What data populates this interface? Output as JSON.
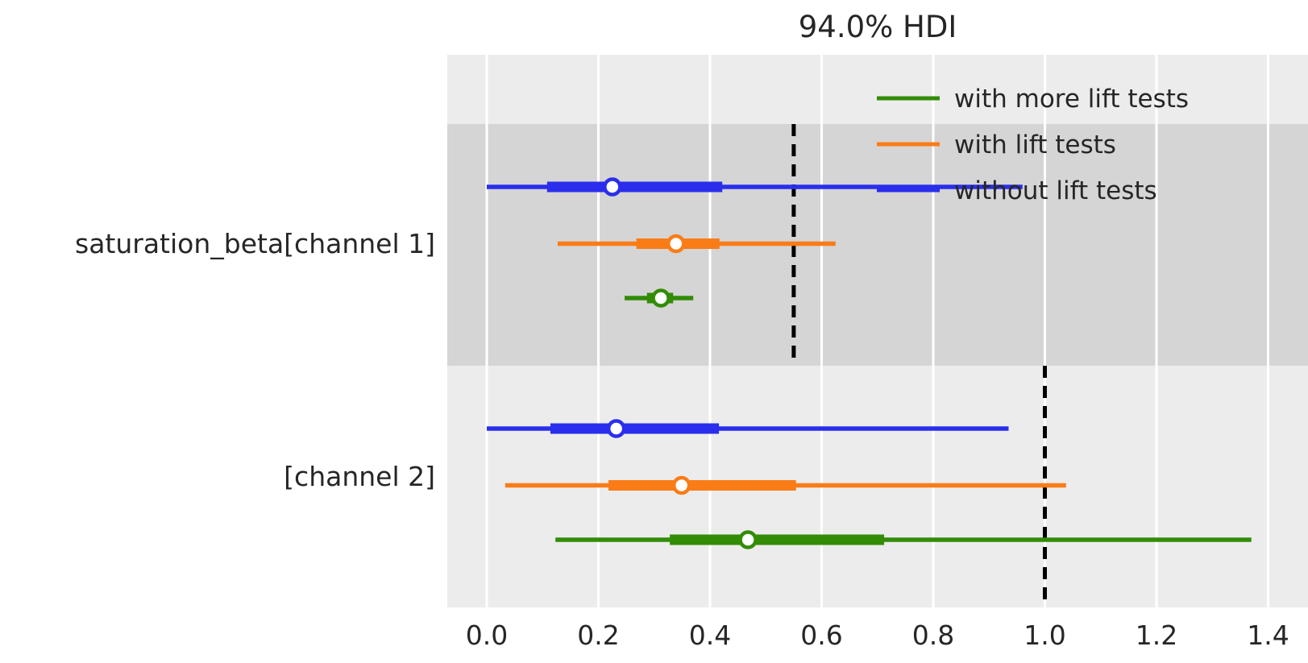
{
  "title": "94.0% HDI",
  "colors": {
    "blue": "#2a2eec",
    "orange": "#fa7c17",
    "green": "#328c06",
    "plot_bg": "#ececec",
    "band": "#d5d5d5",
    "grid": "#ffffff",
    "text": "#262626",
    "ref_line": "#000000",
    "marker_face": "#ffffff"
  },
  "legend": {
    "items": [
      {
        "label": "with more lift tests",
        "color": "#328c06"
      },
      {
        "label": "with lift tests",
        "color": "#fa7c17"
      },
      {
        "label": "without lift tests",
        "color": "#2a2eec"
      }
    ]
  },
  "chart_data": {
    "type": "forest",
    "title": "94.0% HDI",
    "hdi_label": "94.0% HDI",
    "xlabel": "",
    "x_ticks": [
      0.0,
      0.2,
      0.4,
      0.6,
      0.8,
      1.0,
      1.2,
      1.4
    ],
    "xlim": [
      -0.07,
      1.47
    ],
    "grid": "vertical-white",
    "legend_position": "upper right",
    "rows": [
      {
        "label": "saturation_beta[channel 1]",
        "shaded": true,
        "ref_line": 0.55,
        "series": [
          {
            "name": "without lift tests",
            "color": "#2a2eec",
            "hdi": [
              0.0,
              0.96
            ],
            "quartile": [
              0.108,
              0.422
            ],
            "median": 0.225
          },
          {
            "name": "with lift tests",
            "color": "#fa7c17",
            "hdi": [
              0.127,
              0.625
            ],
            "quartile": [
              0.268,
              0.417
            ],
            "median": 0.339
          },
          {
            "name": "with more lift tests",
            "color": "#328c06",
            "hdi": [
              0.247,
              0.37
            ],
            "quartile": [
              0.287,
              0.334
            ],
            "median": 0.312
          }
        ]
      },
      {
        "label": "[channel 2]",
        "shaded": false,
        "ref_line": 1.0,
        "series": [
          {
            "name": "without lift tests",
            "color": "#2a2eec",
            "hdi": [
              0.0,
              0.935
            ],
            "quartile": [
              0.114,
              0.416
            ],
            "median": 0.232
          },
          {
            "name": "with lift tests",
            "color": "#fa7c17",
            "hdi": [
              0.033,
              1.038
            ],
            "quartile": [
              0.218,
              0.554
            ],
            "median": 0.349
          },
          {
            "name": "with more lift tests",
            "color": "#328c06",
            "hdi": [
              0.123,
              1.37
            ],
            "quartile": [
              0.328,
              0.712
            ],
            "median": 0.468
          }
        ]
      }
    ]
  }
}
